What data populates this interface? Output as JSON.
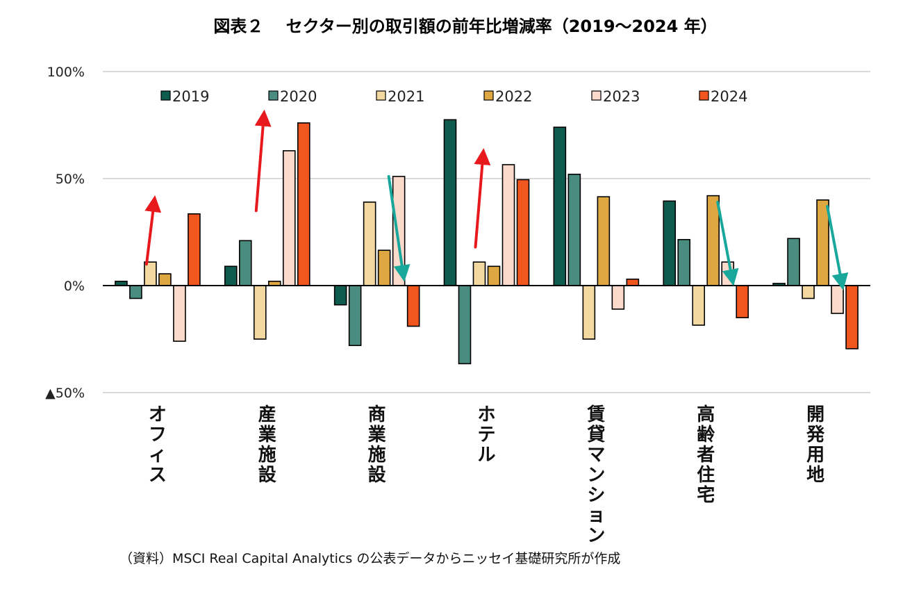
{
  "chart_data": {
    "type": "bar",
    "title": "図表２　 セクター別の取引額の前年比増減率（2019～2024 年）",
    "source_note": "（資料）MSCI Real Capital Analytics の公表データからニッセイ基礎研究所が作成",
    "categories": [
      "オフィス",
      "産業施設",
      "商業施設",
      "ホテル",
      "賃貸マンション",
      "高齢者住宅",
      "開発用地"
    ],
    "ylim": [
      -50,
      100
    ],
    "yticks": [
      {
        "value": 100,
        "label": "100%"
      },
      {
        "value": 50,
        "label": "50%"
      },
      {
        "value": 0,
        "label": "0%"
      },
      {
        "value": -50,
        "label": "▲50%"
      }
    ],
    "grid": true,
    "legend_position": "top",
    "series": [
      {
        "name": "2019",
        "color": "#0f5b4e",
        "values": [
          2,
          9,
          -9,
          77.5,
          74,
          39.5,
          1
        ]
      },
      {
        "name": "2020",
        "color": "#4a8c80",
        "values": [
          -6,
          21,
          -28,
          -36.5,
          52,
          21.5,
          22
        ]
      },
      {
        "name": "2021",
        "color": "#f3d9a0",
        "values": [
          11,
          -25,
          39,
          11,
          -25,
          -18.5,
          -6
        ]
      },
      {
        "name": "2022",
        "color": "#dfa742",
        "values": [
          5.5,
          2,
          16.5,
          9,
          41.5,
          42,
          40
        ]
      },
      {
        "name": "2023",
        "color": "#fbd9cb",
        "values": [
          -26,
          63,
          51,
          56.5,
          -11,
          11,
          -13
        ]
      },
      {
        "name": "2024",
        "color": "#f0561d",
        "values": [
          33.5,
          76,
          -19,
          49.5,
          3,
          -15,
          -29.5
        ]
      }
    ],
    "annotations": [
      {
        "type": "arrow",
        "direction": "up",
        "color": "#e8191d",
        "category": "オフィス",
        "from": 10,
        "to": 39
      },
      {
        "type": "arrow",
        "direction": "up",
        "color": "#e8191d",
        "category": "産業施設",
        "from": 35,
        "to": 79
      },
      {
        "type": "arrow",
        "direction": "down",
        "color": "#1aa79b",
        "category": "商業施設",
        "from": 51,
        "to": 5
      },
      {
        "type": "arrow",
        "direction": "up",
        "color": "#e8191d",
        "category": "ホテル",
        "from": 18,
        "to": 61
      },
      {
        "type": "arrow",
        "direction": "down",
        "color": "#1aa79b",
        "category": "高齢者住宅",
        "from": 39,
        "to": 3
      },
      {
        "type": "arrow",
        "direction": "down",
        "color": "#1aa79b",
        "category": "開発用地",
        "from": 37,
        "to": 1
      }
    ]
  }
}
